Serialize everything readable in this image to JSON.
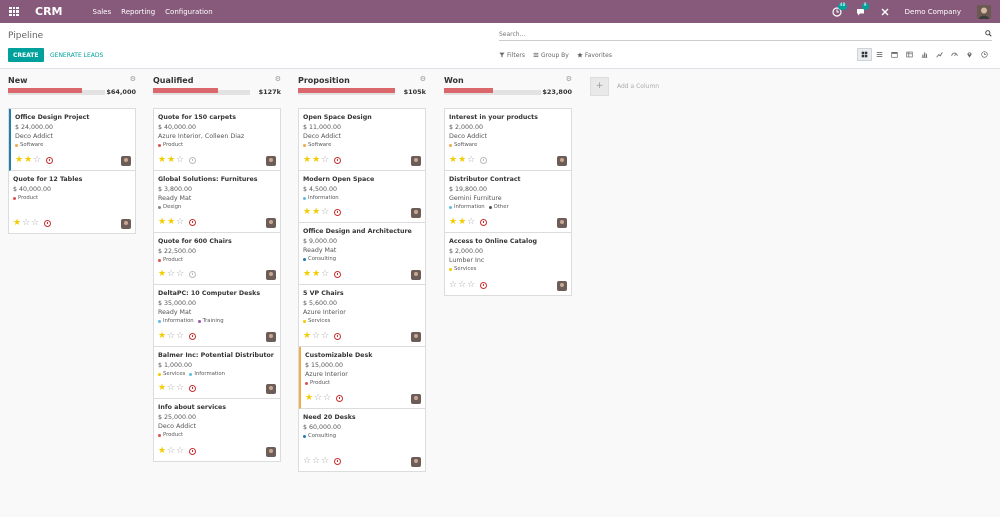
{
  "navbar": {
    "brand": "CRM",
    "menu": [
      "Sales",
      "Reporting",
      "Configuration"
    ],
    "activity_count": "48",
    "messages_count": "9",
    "company": "Demo Company"
  },
  "control": {
    "title": "Pipeline",
    "create_label": "CREATE",
    "generate_label": "GENERATE LEADS",
    "search_placeholder": "Search...",
    "filters_label": "Filters",
    "groupby_label": "Group By",
    "favorites_label": "Favorites"
  },
  "columns": [
    {
      "title": "New",
      "total": "$64,000",
      "fill": 0.76,
      "cards": [
        {
          "title": "Office Design Project",
          "amount": "$ 24,000.00",
          "partner": "Deco Addict",
          "tags": [
            {
              "name": "Software",
              "color": "#f0ad4e"
            }
          ],
          "stars": 2,
          "activity": "red",
          "accent": "blue",
          "tall": false
        },
        {
          "title": "Quote for 12 Tables",
          "amount": "$ 40,000.00",
          "partner": "",
          "tags": [
            {
              "name": "Product",
              "color": "#d9534f"
            }
          ],
          "stars": 1,
          "activity": "red",
          "accent": "",
          "tall": false
        }
      ]
    },
    {
      "title": "Qualified",
      "total": "$127k",
      "fill": 0.67,
      "cards": [
        {
          "title": "Quote for 150 carpets",
          "amount": "$ 40,000.00",
          "partner": "Azure Interior, Colleen Diaz",
          "tags": [
            {
              "name": "Product",
              "color": "#d9534f"
            }
          ],
          "stars": 2,
          "activity": "grey",
          "accent": "",
          "tall": false
        },
        {
          "title": "Global Solutions: Furnitures",
          "amount": "$ 3,800.00",
          "partner": "Ready Mat",
          "tags": [
            {
              "name": "Design",
              "color": "#888888"
            }
          ],
          "stars": 2,
          "activity": "red",
          "accent": "",
          "tall": false
        },
        {
          "title": "Quote for 600 Chairs",
          "amount": "$ 22,500.00",
          "partner": "",
          "tags": [
            {
              "name": "Product",
              "color": "#d9534f"
            }
          ],
          "stars": 1,
          "activity": "grey",
          "accent": "",
          "tall": true
        },
        {
          "title": "DeltaPC: 10 Computer Desks",
          "amount": "$ 35,000.00",
          "partner": "Ready Mat",
          "tags": [
            {
              "name": "Information",
              "color": "#5bc0de"
            },
            {
              "name": "Training",
              "color": "#9b59b6"
            }
          ],
          "stars": 1,
          "activity": "red",
          "accent": "",
          "tall": false
        },
        {
          "title": "Balmer Inc: Potential Distributor",
          "amount": "$ 1,000.00",
          "partner": "",
          "tags": [
            {
              "name": "Services",
              "color": "#f3cc00"
            },
            {
              "name": "Information",
              "color": "#5bc0de"
            }
          ],
          "stars": 1,
          "activity": "red",
          "accent": "",
          "tall": true
        },
        {
          "title": "Info about services",
          "amount": "$ 25,000.00",
          "partner": "Deco Addict",
          "tags": [
            {
              "name": "Product",
              "color": "#d9534f"
            }
          ],
          "stars": 1,
          "activity": "red",
          "accent": "",
          "tall": false
        }
      ]
    },
    {
      "title": "Proposition",
      "total": "$105k",
      "fill": 1.0,
      "cards": [
        {
          "title": "Open Space Design",
          "amount": "$ 11,000.00",
          "partner": "Deco Addict",
          "tags": [
            {
              "name": "Software",
              "color": "#f0ad4e"
            }
          ],
          "stars": 2,
          "activity": "red",
          "accent": "",
          "tall": false
        },
        {
          "title": "Modern Open Space",
          "amount": "$ 4,500.00",
          "partner": "",
          "tags": [
            {
              "name": "Information",
              "color": "#5bc0de"
            }
          ],
          "stars": 2,
          "activity": "red",
          "accent": "",
          "tall": true
        },
        {
          "title": "Office Design and Architecture",
          "amount": "$ 9,000.00",
          "partner": "Ready Mat",
          "tags": [
            {
              "name": "Consulting",
              "color": "#1f7fb1"
            }
          ],
          "stars": 2,
          "activity": "red",
          "accent": "",
          "tall": false
        },
        {
          "title": "5 VP Chairs",
          "amount": "$ 5,600.00",
          "partner": "Azure Interior",
          "tags": [
            {
              "name": "Services",
              "color": "#f3cc00"
            }
          ],
          "stars": 1,
          "activity": "red",
          "accent": "",
          "tall": false
        },
        {
          "title": "Customizable Desk",
          "amount": "$ 15,000.00",
          "partner": "Azure Interior",
          "tags": [
            {
              "name": "Product",
              "color": "#d9534f"
            }
          ],
          "stars": 1,
          "activity": "red",
          "accent": "yellow",
          "tall": false
        },
        {
          "title": "Need 20 Desks",
          "amount": "$ 60,000.00",
          "partner": "",
          "tags": [
            {
              "name": "Consulting",
              "color": "#1f7fb1"
            }
          ],
          "stars": 0,
          "activity": "red",
          "accent": "",
          "tall": false
        }
      ]
    },
    {
      "title": "Won",
      "total": "$23,800",
      "fill": 0.5,
      "cards": [
        {
          "title": "Interest in your products",
          "amount": "$ 2,000.00",
          "partner": "Deco Addict",
          "tags": [
            {
              "name": "Software",
              "color": "#f0ad4e"
            }
          ],
          "stars": 2,
          "activity": "grey",
          "accent": "",
          "tall": false
        },
        {
          "title": "Distributor Contract",
          "amount": "$ 19,800.00",
          "partner": "Gemini Furniture",
          "tags": [
            {
              "name": "Information",
              "color": "#5bc0de"
            },
            {
              "name": "Other",
              "color": "#555555"
            }
          ],
          "stars": 2,
          "activity": "red",
          "accent": "",
          "tall": false
        },
        {
          "title": "Access to Online Catalog",
          "amount": "$ 2,000.00",
          "partner": "Lumber Inc",
          "tags": [
            {
              "name": "Services",
              "color": "#f3cc00"
            }
          ],
          "stars": 0,
          "activity": "red",
          "accent": "",
          "tall": false
        }
      ]
    }
  ],
  "add_column_label": "Add a Column"
}
